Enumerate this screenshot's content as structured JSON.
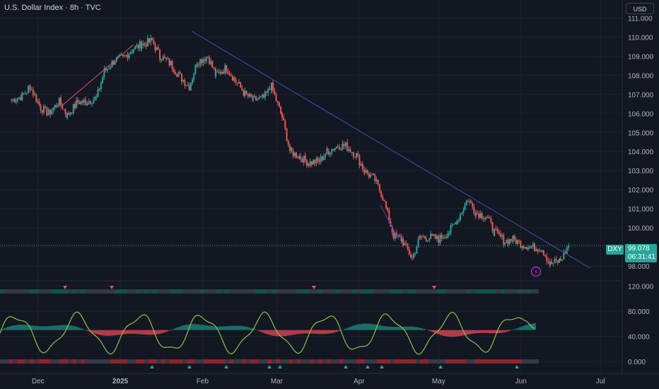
{
  "header": {
    "title": "U.S. Dollar Index · 8h · TVC",
    "currency": "USD"
  },
  "price_tag": {
    "symbol": "DXY",
    "price": "99.078",
    "countdown": "06:31:41"
  },
  "icons": {
    "alert": "lightning-bolt-icon"
  },
  "colors": {
    "up": "#26a69a",
    "down": "#ef5350",
    "trendline": "#3f51b5",
    "osc_line": "#8bc34a",
    "background": "#131722"
  },
  "chart_data": [
    {
      "type": "candlestick",
      "symbol": "DXY",
      "title": "U.S. Dollar Index · 8h · TVC",
      "x_ticks": [
        "Dec",
        "2025",
        "Feb",
        "Mar",
        "Apr",
        "May",
        "Jun",
        "Jul"
      ],
      "y_ticks": [
        "98.000",
        "99.000",
        "100.000",
        "101.000",
        "102.000",
        "103.000",
        "104.000",
        "105.000",
        "106.000",
        "107.000",
        "108.000",
        "109.000",
        "110.000",
        "111.000"
      ],
      "ylim": [
        97.3,
        111.2
      ],
      "last_price": 99.078,
      "series_close": [
        [
          "2024-11-21",
          106.7
        ],
        [
          "2024-11-25",
          106.9
        ],
        [
          "2024-11-28",
          107.4
        ],
        [
          "2024-12-02",
          106.3
        ],
        [
          "2024-12-05",
          106.0
        ],
        [
          "2024-12-09",
          106.6
        ],
        [
          "2024-12-12",
          105.9
        ],
        [
          "2024-12-16",
          106.6
        ],
        [
          "2024-12-19",
          106.6
        ],
        [
          "2024-12-23",
          106.8
        ],
        [
          "2024-12-26",
          108.2
        ],
        [
          "2024-12-30",
          108.8
        ],
        [
          "2025-01-02",
          108.9
        ],
        [
          "2025-01-06",
          109.4
        ],
        [
          "2025-01-09",
          109.6
        ],
        [
          "2025-01-13",
          109.8
        ],
        [
          "2025-01-16",
          109.0
        ],
        [
          "2025-01-20",
          108.6
        ],
        [
          "2025-01-23",
          108.0
        ],
        [
          "2025-01-27",
          107.4
        ],
        [
          "2025-01-30",
          108.7
        ],
        [
          "2025-02-03",
          109.0
        ],
        [
          "2025-02-06",
          108.0
        ],
        [
          "2025-02-10",
          108.4
        ],
        [
          "2025-02-13",
          107.8
        ],
        [
          "2025-02-17",
          107.0
        ],
        [
          "2025-02-20",
          106.7
        ],
        [
          "2025-02-24",
          106.8
        ],
        [
          "2025-02-27",
          107.4
        ],
        [
          "2025-03-03",
          105.8
        ],
        [
          "2025-03-06",
          104.0
        ],
        [
          "2025-03-10",
          103.7
        ],
        [
          "2025-03-13",
          103.4
        ],
        [
          "2025-03-17",
          103.5
        ],
        [
          "2025-03-20",
          104.0
        ],
        [
          "2025-03-24",
          104.3
        ],
        [
          "2025-03-27",
          104.3
        ],
        [
          "2025-03-31",
          103.8
        ],
        [
          "2025-04-03",
          103.0
        ],
        [
          "2025-04-07",
          102.5
        ],
        [
          "2025-04-10",
          101.6
        ],
        [
          "2025-04-14",
          99.6
        ],
        [
          "2025-04-17",
          99.4
        ],
        [
          "2025-04-21",
          98.4
        ],
        [
          "2025-04-24",
          99.5
        ],
        [
          "2025-04-28",
          99.5
        ],
        [
          "2025-05-01",
          99.4
        ],
        [
          "2025-05-05",
          99.8
        ],
        [
          "2025-05-08",
          100.4
        ],
        [
          "2025-05-12",
          101.5
        ],
        [
          "2025-05-15",
          100.8
        ],
        [
          "2025-05-19",
          100.6
        ],
        [
          "2025-05-22",
          99.8
        ],
        [
          "2025-05-26",
          99.3
        ],
        [
          "2025-05-29",
          99.4
        ],
        [
          "2025-06-02",
          99.1
        ],
        [
          "2025-06-05",
          99.0
        ],
        [
          "2025-06-09",
          98.9
        ],
        [
          "2025-06-12",
          98.1
        ],
        [
          "2025-06-16",
          98.3
        ],
        [
          "2025-06-19",
          99.078
        ]
      ]
    },
    {
      "type": "line",
      "name": "oscillator",
      "y_ticks": [
        "0.000",
        "40.000",
        "80.000",
        "120.000"
      ],
      "ylim": [
        -10,
        125
      ],
      "last_value": 80
    }
  ]
}
